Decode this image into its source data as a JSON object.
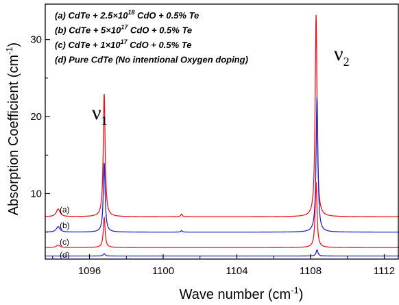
{
  "chart_data": {
    "type": "line",
    "xlabel": "Wave number (cm",
    "xlabel_sup": "-1",
    "xlabel_end": ")",
    "ylabel": "Absorption Coefficient (cm",
    "ylabel_sup": "-1",
    "ylabel_end": ")",
    "xlim": [
      1093.6,
      1112.8
    ],
    "ylim": [
      1.5,
      34.6
    ],
    "xticks": [
      1096,
      1100,
      1104,
      1108,
      1112
    ],
    "yticks": [
      10,
      20,
      30
    ],
    "grid": false,
    "legend_placement": "top-left",
    "legend": [
      {
        "prefix": "(a) CdTe + 2.5×10",
        "sup": "18",
        "suffix": " CdO + 0.5% Te"
      },
      {
        "prefix": "(b) CdTe + 5×10",
        "sup": "17",
        "suffix": " CdO + 0.5% Te"
      },
      {
        "prefix": "(c) CdTe + 1×10",
        "sup": "17",
        "suffix": " CdO + 0.5% Te"
      },
      {
        "prefix": "(d) Pure CdTe (No intentional Oxygen doping)",
        "sup": "",
        "suffix": ""
      }
    ],
    "peak_labels": [
      {
        "text": "ν",
        "sub": "1",
        "x": 1096.8
      },
      {
        "text": "ν",
        "sub": "2",
        "x": 1108.3
      }
    ],
    "series": [
      {
        "label": "(a)",
        "color": "#e8141c",
        "baseline": 7.0,
        "peaks": [
          [
            1094.3,
            1.0,
            0.12
          ],
          [
            1096.8,
            16.0,
            0.06
          ],
          [
            1101.0,
            0.35,
            0.05
          ],
          [
            1108.3,
            26.2,
            0.06
          ]
        ]
      },
      {
        "label": "(b)",
        "color": "#2222cc",
        "baseline": 5.0,
        "peaks": [
          [
            1094.3,
            0.7,
            0.12
          ],
          [
            1096.8,
            9.0,
            0.06
          ],
          [
            1101.0,
            0.2,
            0.05
          ],
          [
            1108.35,
            17.5,
            0.06
          ]
        ]
      },
      {
        "label": "(c)",
        "color": "#e8141c",
        "baseline": 3.0,
        "peaks": [
          [
            1094.3,
            0.3,
            0.12
          ],
          [
            1096.8,
            3.9,
            0.06
          ],
          [
            1108.3,
            8.5,
            0.06
          ]
        ]
      },
      {
        "label": "(d)",
        "color": "#2222cc",
        "baseline": 1.9,
        "peaks": [
          [
            1096.8,
            0.3,
            0.06
          ],
          [
            1108.35,
            0.8,
            0.06
          ]
        ]
      }
    ]
  }
}
